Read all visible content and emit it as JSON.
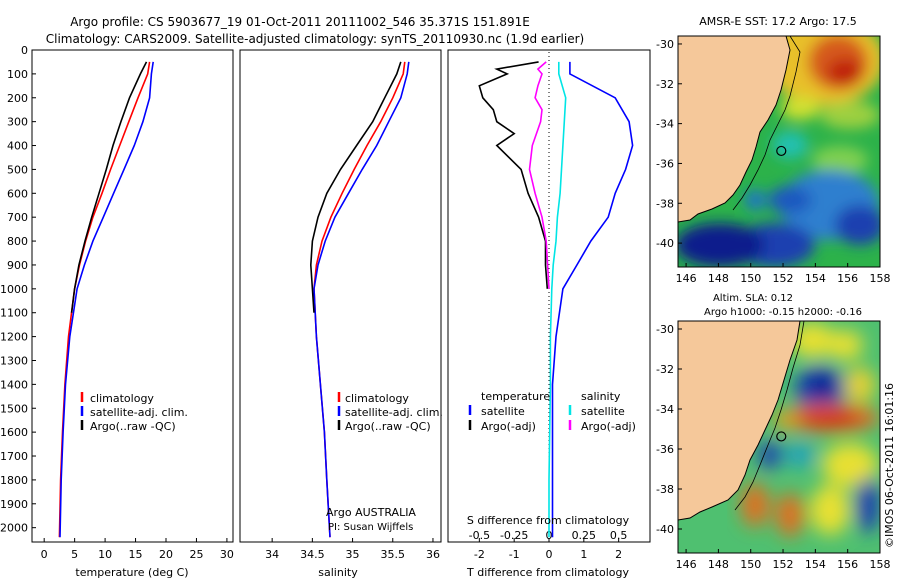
{
  "header": {
    "line1": "Argo profile: CS 5903677_19 01-Oct-2011 20111002_546 35.371S 151.891E",
    "line2": "Climatology: CARS2009. Satellite-adjusted climatology: synTS_20110930.nc (1.9d earlier)"
  },
  "colors": {
    "climatology": "#ff0000",
    "satellite": "#0000ff",
    "argo": "#000000",
    "satellite_s": "#00e5e5",
    "argo_s": "#ff00ff",
    "land": "#f5c89a"
  },
  "chart_data": [
    {
      "name": "temperature-panel",
      "type": "line",
      "xlabel": "temperature (deg C)",
      "xlim": [
        -2,
        31
      ],
      "ylim": [
        2060,
        0
      ],
      "xticks": [
        0,
        5,
        10,
        15,
        20,
        25,
        30
      ],
      "yticks": [
        0,
        100,
        200,
        300,
        400,
        500,
        600,
        700,
        800,
        900,
        1000,
        1100,
        1200,
        1300,
        1400,
        1500,
        1600,
        1700,
        1800,
        1900,
        2000
      ],
      "legend": [
        "climatology",
        "satellite-adj. clim.",
        "Argo(..raw -QC)"
      ],
      "legend_position": "center",
      "series": [
        {
          "name": "climatology",
          "color": "red",
          "depth": [
            50,
            100,
            200,
            300,
            400,
            500,
            600,
            700,
            800,
            900,
            1000,
            1200,
            1400,
            1600,
            1800,
            2040
          ],
          "values": [
            17.3,
            17.0,
            15.4,
            13.9,
            12.4,
            10.9,
            9.5,
            8.0,
            6.8,
            5.8,
            5.0,
            4.0,
            3.4,
            3.0,
            2.7,
            2.5
          ]
        },
        {
          "name": "satellite-adj. clim.",
          "color": "blue",
          "depth": [
            50,
            100,
            200,
            300,
            400,
            500,
            600,
            700,
            800,
            900,
            1000,
            1200,
            1400,
            1600,
            1800,
            2040
          ],
          "values": [
            17.9,
            17.6,
            17.3,
            16.2,
            14.8,
            13.1,
            11.4,
            9.7,
            8.0,
            6.6,
            5.4,
            4.2,
            3.5,
            3.1,
            2.8,
            2.6
          ]
        },
        {
          "name": "Argo(..raw -QC)",
          "color": "black",
          "depth": [
            50,
            100,
            200,
            300,
            400,
            500,
            600,
            700,
            800,
            900,
            1000,
            1100
          ],
          "values": [
            16.8,
            15.8,
            14.0,
            12.6,
            11.3,
            10.2,
            9.0,
            7.8,
            6.7,
            5.7,
            5.0,
            4.5
          ]
        }
      ]
    },
    {
      "name": "salinity-panel",
      "type": "line",
      "xlabel": "salinity",
      "xlim": [
        33.6,
        36.1
      ],
      "ylim": [
        2060,
        0
      ],
      "xticks": [
        34,
        34.5,
        35,
        35.5,
        36
      ],
      "legend": [
        "climatology",
        "satellite-adj. clim.",
        "Argo(..raw -QC)"
      ],
      "legend_position": "center",
      "annotation": [
        "Argo AUSTRALIA",
        "PI: Susan Wijffels"
      ],
      "series": [
        {
          "name": "climatology",
          "color": "red",
          "depth": [
            50,
            100,
            200,
            300,
            400,
            500,
            600,
            700,
            800,
            900,
            1000,
            1200,
            1400,
            1600,
            1800,
            2040
          ],
          "values": [
            35.65,
            35.63,
            35.5,
            35.35,
            35.18,
            35.02,
            34.87,
            34.73,
            34.62,
            34.55,
            34.52,
            34.55,
            34.6,
            34.65,
            34.68,
            34.72
          ]
        },
        {
          "name": "satellite-adj. clim.",
          "color": "blue",
          "depth": [
            50,
            100,
            200,
            300,
            400,
            500,
            600,
            700,
            800,
            900,
            1000,
            1200,
            1400,
            1600,
            1800,
            2040
          ],
          "values": [
            35.7,
            35.68,
            35.6,
            35.45,
            35.3,
            35.12,
            34.95,
            34.78,
            34.66,
            34.57,
            34.52,
            34.55,
            34.6,
            34.65,
            34.68,
            34.72
          ]
        },
        {
          "name": "Argo(..raw -QC)",
          "color": "black",
          "depth": [
            50,
            100,
            200,
            300,
            400,
            500,
            600,
            700,
            800,
            900,
            1000,
            1100
          ],
          "values": [
            35.6,
            35.55,
            35.4,
            35.25,
            35.05,
            34.85,
            34.68,
            34.57,
            34.5,
            34.48,
            34.5,
            34.52
          ]
        }
      ]
    },
    {
      "name": "difference-panel",
      "type": "line",
      "xlabel": "T difference from climatology",
      "xlabel_top": "S difference from climatology",
      "xlim": [
        -2.9,
        2.9
      ],
      "ylim": [
        2060,
        0
      ],
      "xticks_T": [
        -2,
        -1,
        0,
        1,
        2
      ],
      "xticks_S": [
        -0.5,
        -0.25,
        0,
        0.25,
        0.5
      ],
      "legend_T": {
        "title": "temperature",
        "items": [
          "satellite",
          "Argo(-adj)"
        ]
      },
      "legend_S": {
        "title": "salinity",
        "items": [
          "satellite",
          "Argo(-adj)"
        ]
      },
      "series": [
        {
          "name": "temperature satellite",
          "color": "blue",
          "depth": [
            50,
            100,
            200,
            300,
            400,
            500,
            600,
            700,
            800,
            900,
            1000,
            1200,
            1400,
            1600,
            1800,
            2040
          ],
          "values": [
            0.6,
            0.6,
            1.9,
            2.3,
            2.4,
            2.2,
            1.9,
            1.7,
            1.2,
            0.8,
            0.4,
            0.2,
            0.1,
            0.1,
            0.1,
            0.1
          ]
        },
        {
          "name": "temperature Argo(-adj)",
          "color": "black",
          "depth": [
            50,
            80,
            100,
            150,
            200,
            250,
            300,
            350,
            400,
            500,
            600,
            700,
            800,
            900,
            1000
          ],
          "values": [
            -0.3,
            -1.5,
            -1.2,
            -2.0,
            -1.9,
            -1.6,
            -1.5,
            -1.0,
            -1.5,
            -0.8,
            -0.6,
            -0.3,
            -0.1,
            -0.1,
            -0.05
          ]
        },
        {
          "name": "salinity satellite",
          "color": "cyan",
          "depth": [
            50,
            100,
            200,
            300,
            400,
            500,
            600,
            700,
            800,
            900,
            1000,
            1200,
            1400,
            1600,
            1800,
            2040
          ],
          "values": [
            0.07,
            0.07,
            0.12,
            0.11,
            0.1,
            0.09,
            0.08,
            0.06,
            0.05,
            0.03,
            0.02,
            0.01,
            0.01,
            0.005,
            0.0,
            0.0
          ]
        },
        {
          "name": "salinity Argo(-adj)",
          "color": "magenta",
          "depth": [
            50,
            80,
            100,
            150,
            200,
            250,
            300,
            400,
            500,
            600,
            700,
            800,
            900,
            1000
          ],
          "values": [
            -0.02,
            -0.08,
            -0.05,
            -0.08,
            -0.1,
            -0.05,
            -0.06,
            -0.12,
            -0.14,
            -0.1,
            -0.05,
            -0.02,
            -0.01,
            0.0
          ]
        }
      ]
    },
    {
      "name": "sst-map",
      "type": "heatmap",
      "title": "AMSR-E SST: 17.2 Argo: 17.5",
      "xlim": [
        145.5,
        158
      ],
      "ylim": [
        -41.2,
        -29.6
      ],
      "xticks": [
        146,
        148,
        150,
        152,
        154,
        156,
        158
      ],
      "yticks": [
        -30,
        -32,
        -34,
        -36,
        -38,
        -40
      ],
      "argo_position": {
        "lon": 151.891,
        "lat": -35.371
      }
    },
    {
      "name": "sla-map",
      "type": "heatmap",
      "title": "Altim. SLA: 0.12",
      "subtitle": "Argo h1000: -0.15 h2000: -0.16",
      "xlim": [
        145.5,
        158
      ],
      "ylim": [
        -41.2,
        -29.6
      ],
      "xticks": [
        146,
        148,
        150,
        152,
        154,
        156,
        158
      ],
      "yticks": [
        -30,
        -32,
        -34,
        -36,
        -38,
        -40
      ],
      "argo_position": {
        "lon": 151.891,
        "lat": -35.371
      }
    }
  ],
  "footer": {
    "stamp": "©IMOS 06-Oct-2011 16:01:16"
  }
}
